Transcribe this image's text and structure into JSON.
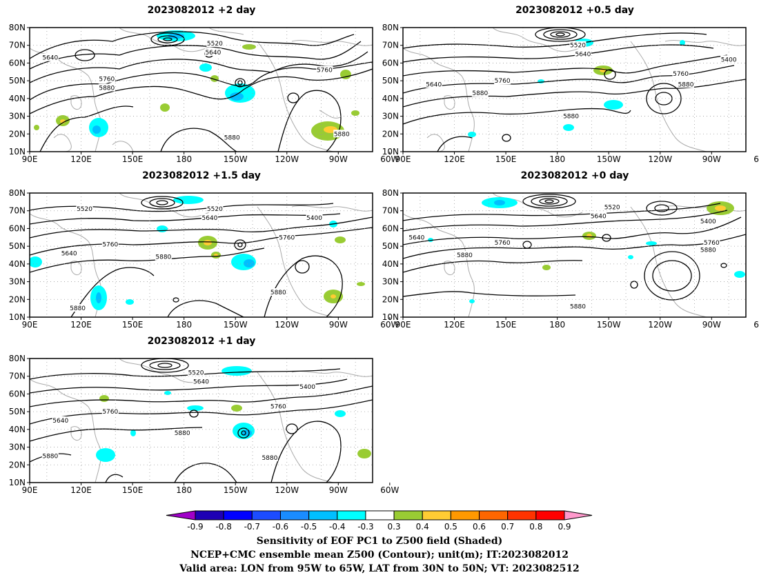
{
  "panels": [
    {
      "title": "2023082012 +2 day",
      "contour_labels": [
        {
          "text": "5640",
          "lon": 102,
          "lat": 63
        },
        {
          "text": "5520",
          "lon": 198,
          "lat": 71
        },
        {
          "text": "5640",
          "lon": 197,
          "lat": 66
        },
        {
          "text": "5760",
          "lon": 135,
          "lat": 51
        },
        {
          "text": "5880",
          "lon": 135,
          "lat": 46
        },
        {
          "text": "5760",
          "lon": 262,
          "lat": 56
        },
        {
          "text": "5880",
          "lon": 208,
          "lat": 18
        },
        {
          "text": "5880",
          "lon": 272,
          "lat": 20
        }
      ]
    },
    {
      "title": "2023082012 +0.5 day",
      "contour_labels": [
        {
          "text": "5520",
          "lon": 192,
          "lat": 70
        },
        {
          "text": "5640",
          "lon": 195,
          "lat": 65
        },
        {
          "text": "5400",
          "lon": 280,
          "lat": 62
        },
        {
          "text": "5760",
          "lon": 252,
          "lat": 54
        },
        {
          "text": "5880",
          "lon": 255,
          "lat": 48
        },
        {
          "text": "5640",
          "lon": 108,
          "lat": 48
        },
        {
          "text": "5760",
          "lon": 148,
          "lat": 50
        },
        {
          "text": "5880",
          "lon": 135,
          "lat": 43
        },
        {
          "text": "5880",
          "lon": 188,
          "lat": 30
        }
      ]
    },
    {
      "title": "2023082012 +1.5 day",
      "contour_labels": [
        {
          "text": "5520",
          "lon": 122,
          "lat": 71
        },
        {
          "text": "5520",
          "lon": 198,
          "lat": 71
        },
        {
          "text": "5640",
          "lon": 195,
          "lat": 66
        },
        {
          "text": "5400",
          "lon": 256,
          "lat": 66
        },
        {
          "text": "5760",
          "lon": 137,
          "lat": 51
        },
        {
          "text": "5760",
          "lon": 240,
          "lat": 55
        },
        {
          "text": "5640",
          "lon": 113,
          "lat": 46
        },
        {
          "text": "5880",
          "lon": 168,
          "lat": 44
        },
        {
          "text": "5880",
          "lon": 235,
          "lat": 24
        },
        {
          "text": "5880",
          "lon": 118,
          "lat": 15
        }
      ]
    },
    {
      "title": "2023082012 +0 day",
      "contour_labels": [
        {
          "text": "5520",
          "lon": 212,
          "lat": 72
        },
        {
          "text": "5640",
          "lon": 204,
          "lat": 67
        },
        {
          "text": "5400",
          "lon": 268,
          "lat": 64
        },
        {
          "text": "5640",
          "lon": 98,
          "lat": 55
        },
        {
          "text": "5760",
          "lon": 148,
          "lat": 52
        },
        {
          "text": "5760",
          "lon": 270,
          "lat": 52
        },
        {
          "text": "5880",
          "lon": 268,
          "lat": 48
        },
        {
          "text": "5880",
          "lon": 126,
          "lat": 45
        },
        {
          "text": "5880",
          "lon": 192,
          "lat": 16
        }
      ]
    },
    {
      "title": "2023082012 +1 day",
      "contour_labels": [
        {
          "text": "5520",
          "lon": 187,
          "lat": 72
        },
        {
          "text": "5640",
          "lon": 190,
          "lat": 67
        },
        {
          "text": "5400",
          "lon": 252,
          "lat": 64
        },
        {
          "text": "5760",
          "lon": 137,
          "lat": 50
        },
        {
          "text": "5760",
          "lon": 235,
          "lat": 53
        },
        {
          "text": "5640",
          "lon": 108,
          "lat": 45
        },
        {
          "text": "5880",
          "lon": 179,
          "lat": 38
        },
        {
          "text": "5880",
          "lon": 102,
          "lat": 25
        },
        {
          "text": "5880",
          "lon": 230,
          "lat": 24
        }
      ]
    }
  ],
  "axes": {
    "lat_labels": [
      "10N",
      "20N",
      "30N",
      "40N",
      "50N",
      "60N",
      "70N",
      "80N"
    ],
    "lon_labels": [
      "90E",
      "120E",
      "150E",
      "180",
      "150W",
      "120W",
      "90W",
      "60W"
    ]
  },
  "colorbar": {
    "ticks": [
      "-0.9",
      "-0.8",
      "-0.7",
      "-0.6",
      "-0.5",
      "-0.4",
      "-0.3",
      "0.3",
      "0.4",
      "0.5",
      "0.6",
      "0.7",
      "0.8",
      "0.9"
    ],
    "colors": [
      "#a000c8",
      "#1e00b4",
      "#0000ff",
      "#1c4cff",
      "#1a8cff",
      "#00bfff",
      "#00ffff",
      "#ffffff",
      "#99cc33",
      "#ffcc33",
      "#ff9900",
      "#ff6600",
      "#ff3300",
      "#ff0000",
      "#ff99cc"
    ]
  },
  "caption": {
    "line1": "Sensitivity of EOF PC1 to Z500 field (Shaded)",
    "line2": "NCEP+CMC ensemble mean Z500 (Contour); unit(m); IT:2023082012",
    "line3": "Valid area: LON from 95W to 65W, LAT from 30N to 50N; VT: 2023082512"
  }
}
